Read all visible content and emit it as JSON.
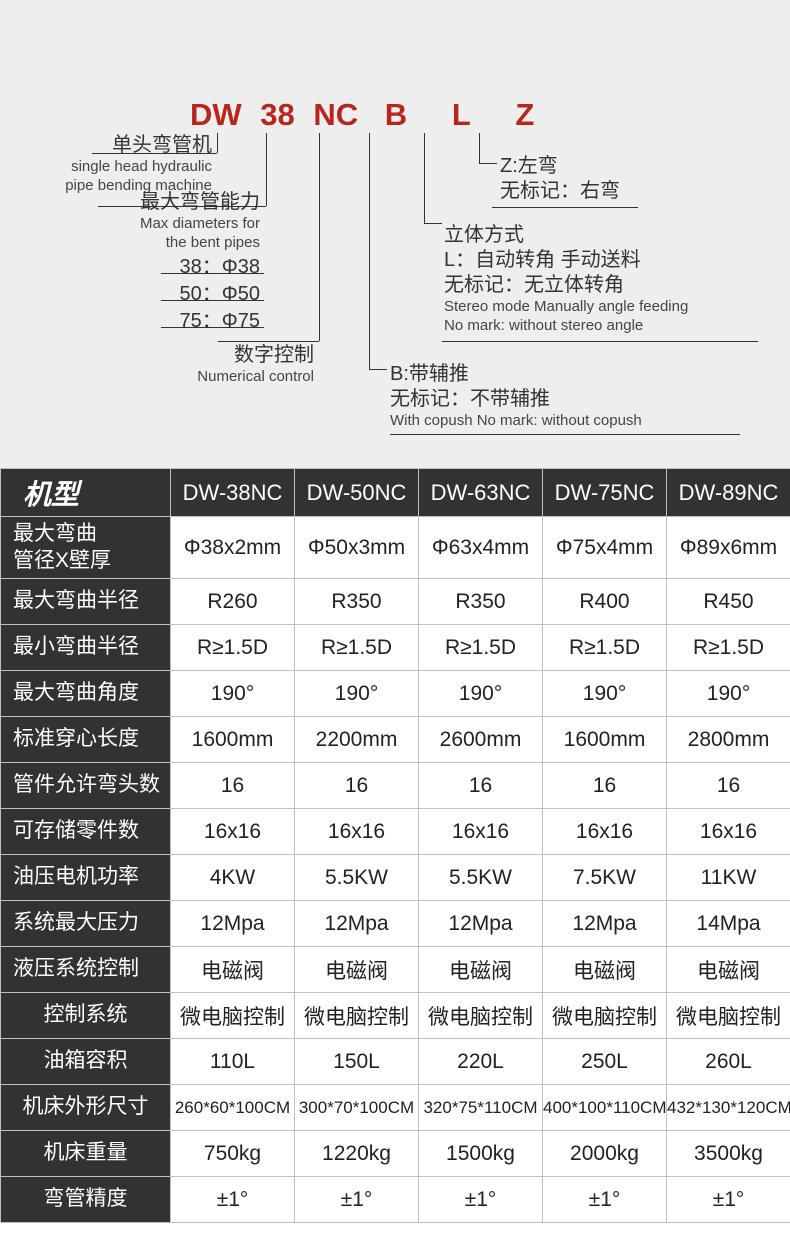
{
  "diagram": {
    "code_parts": [
      "DW",
      "38",
      "NC",
      "B",
      "L",
      "Z"
    ],
    "code_color": "#b8261d",
    "left": {
      "dw": {
        "zh": "单头弯管机",
        "en1": "single head hydraulic",
        "en2": "pipe bending machine"
      },
      "cap": {
        "zh": "最大弯管能力",
        "en1": "Max diameters for",
        "en2": "the bent pipes",
        "rows": [
          "38：Φ38",
          "50：Φ50",
          "75：Φ75"
        ]
      },
      "nc": {
        "zh": "数字控制",
        "en": "Numerical control"
      }
    },
    "right": {
      "z": {
        "l1": "Z:左弯",
        "l2": "无标记：右弯"
      },
      "l": {
        "l1": "立体方式",
        "l2": "L：自动转角 手动送料",
        "l3": "无标记：无立体转角",
        "en1": "Stereo mode Manually angle feeding",
        "en2": "No mark: without stereo angle"
      },
      "b": {
        "l1": "B:带辅推",
        "l2": "无标记：不带辅推",
        "en": "With copush No mark: without copush"
      }
    }
  },
  "table": {
    "model_header": "机型",
    "columns": [
      "DW-38NC",
      "DW-50NC",
      "DW-63NC",
      "DW-75NC",
      "DW-89NC"
    ],
    "rows": [
      {
        "label": "最大弯曲\n管径X壁厚",
        "tall": true,
        "align": "left",
        "vals": [
          "Φ38x2mm",
          "Φ50x3mm",
          "Φ63x4mm",
          "Φ75x4mm",
          "Φ89x6mm"
        ]
      },
      {
        "label": "最大弯曲半径",
        "align": "left",
        "vals": [
          "R260",
          "R350",
          "R350",
          "R400",
          "R450"
        ]
      },
      {
        "label": "最小弯曲半径",
        "align": "left",
        "vals": [
          "R≥1.5D",
          "R≥1.5D",
          "R≥1.5D",
          "R≥1.5D",
          "R≥1.5D"
        ]
      },
      {
        "label": "最大弯曲角度",
        "align": "left",
        "vals": [
          "190°",
          "190°",
          "190°",
          "190°",
          "190°"
        ]
      },
      {
        "label": "标准穿心长度",
        "align": "left",
        "vals": [
          "1600mm",
          "2200mm",
          "2600mm",
          "1600mm",
          "2800mm"
        ]
      },
      {
        "label": "管件允许弯头数",
        "align": "left",
        "vals": [
          "16",
          "16",
          "16",
          "16",
          "16"
        ]
      },
      {
        "label": "可存储零件数",
        "align": "left",
        "vals": [
          "16x16",
          "16x16",
          "16x16",
          "16x16",
          "16x16"
        ]
      },
      {
        "label": "油压电机功率",
        "align": "left",
        "vals": [
          "4KW",
          "5.5KW",
          "5.5KW",
          "7.5KW",
          "11KW"
        ]
      },
      {
        "label": "系统最大压力",
        "align": "left",
        "vals": [
          "12Mpa",
          "12Mpa",
          "12Mpa",
          "12Mpa",
          "14Mpa"
        ]
      },
      {
        "label": "液压系统控制",
        "align": "left",
        "vals": [
          "电磁阀",
          "电磁阀",
          "电磁阀",
          "电磁阀",
          "电磁阀"
        ]
      },
      {
        "label": "控制系统",
        "align": "center",
        "vals": [
          "微电脑控制",
          "微电脑控制",
          "微电脑控制",
          "微电脑控制",
          "微电脑控制"
        ]
      },
      {
        "label": "油箱容积",
        "align": "center",
        "vals": [
          "110L",
          "150L",
          "220L",
          "250L",
          "260L"
        ]
      },
      {
        "label": "机床外形尺寸",
        "align": "center",
        "small": true,
        "vals": [
          "260*60*100CM",
          "300*70*100CM",
          "320*75*110CM",
          "400*100*110CM",
          "432*130*120CM"
        ]
      },
      {
        "label": "机床重量",
        "align": "center",
        "vals": [
          "750kg",
          "1220kg",
          "1500kg",
          "2000kg",
          "3500kg"
        ]
      },
      {
        "label": "弯管精度",
        "align": "center",
        "vals": [
          "±1°",
          "±1°",
          "±1°",
          "±1°",
          "±1°"
        ]
      }
    ],
    "colors": {
      "header_bg": "#323232",
      "header_fg": "#ffffff",
      "cell_bg": "#ffffff",
      "cell_fg": "#222222",
      "border": "#bfbfbf"
    }
  }
}
